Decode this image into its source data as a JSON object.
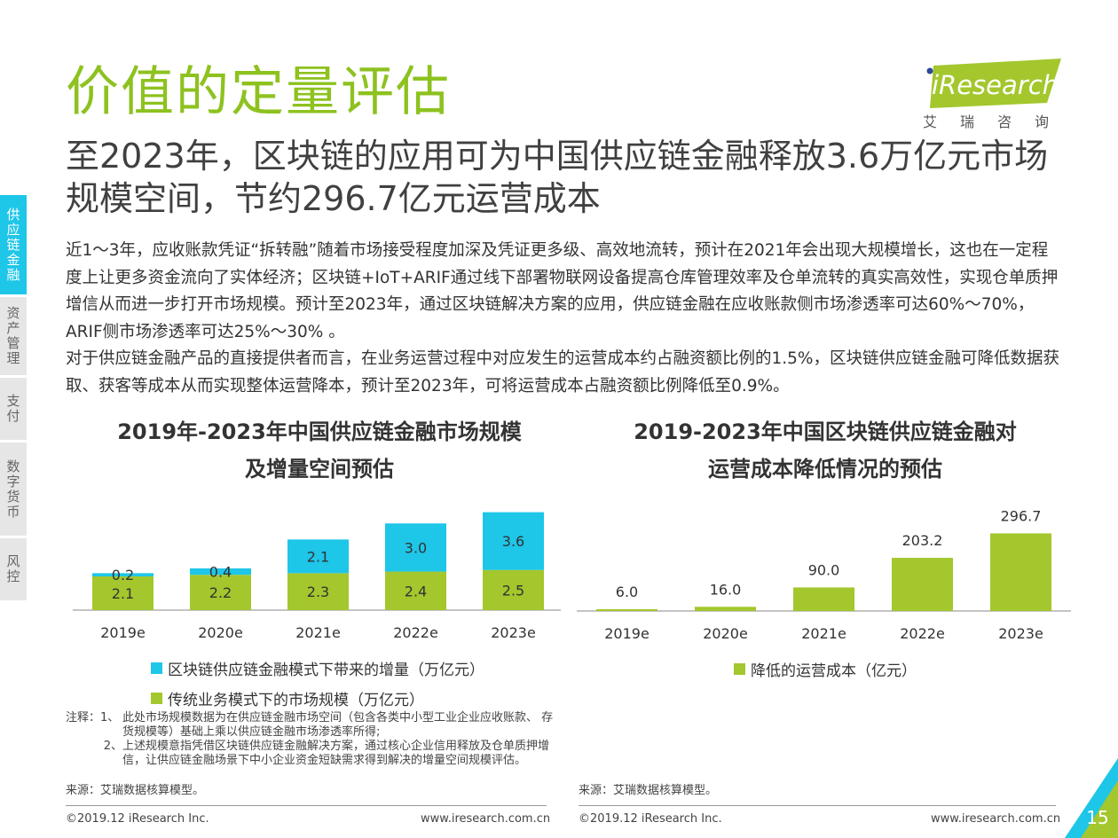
{
  "sidenav": [
    {
      "label": "供应链金融",
      "active": true
    },
    {
      "label": "资产管理",
      "active": false
    },
    {
      "label": "支付",
      "active": false
    },
    {
      "label": "数字货币",
      "active": false
    },
    {
      "label": "风控",
      "active": false
    }
  ],
  "header": {
    "title": "价值的定量评估",
    "logo_text": "iResearch",
    "logo_tagline": "艾瑞咨询",
    "headline": "至2023年，区块链的应用可为中国供应链金融释放3.6万亿元市场规模空间，节约296.7亿元运营成本"
  },
  "body": {
    "paragraph1": "近1～3年，应收账款凭证“拆转融”随着市场接受程度加深及凭证更多级、高效地流转，预计在2021年会出现大规模增长，这也在一定程度上让更多资金流向了实体经济；区块链+IoT+ARIF通过线下部署物联网设备提高仓库管理效率及仓单流转的真实高效性，实现仓单质押增信从而进一步打开市场规模。预计至2023年，通过区块链解决方案的应用，供应链金融在应收账款侧市场渗透率可达60%～70%， ARIF侧市场渗透率可达25%～30% 。",
    "paragraph2": "对于供应链金融产品的直接提供者而言，在业务运营过程中对应发生的运营成本约占融资额比例的1.5%，区块链供应链金融可降低数据获取、获客等成本从而实现整体运营降本，预计至2023年，可将运营成本占融资额比例降低至0.9%。"
  },
  "chart_data": [
    {
      "type": "bar",
      "stacked": true,
      "title": "2019年-2023年中国供应链金融市场规模及增量空间预估",
      "title_line1": "2019年-2023年中国供应链金融市场规模",
      "title_line2": "及增量空间预估",
      "categories": [
        "2019e",
        "2020e",
        "2021e",
        "2022e",
        "2023e"
      ],
      "series": [
        {
          "name": "传统业务模式下的市场规模（万亿元）",
          "color": "#a3c72d",
          "values": [
            2.1,
            2.2,
            2.3,
            2.4,
            2.5
          ]
        },
        {
          "name": "区块链供应链金融模式下带来的增量（万亿元）",
          "color": "#1ec6e8",
          "values": [
            0.2,
            0.4,
            2.1,
            3.0,
            3.6
          ]
        }
      ],
      "grid": false,
      "legend": "bottom"
    },
    {
      "type": "bar",
      "title": "2019-2023年中国区块链供应链金融对运营成本降低情况的预估",
      "title_line1": "2019-2023年中国区块链供应链金融对",
      "title_line2": "运营成本降低情况的预估",
      "categories": [
        "2019e",
        "2020e",
        "2021e",
        "2022e",
        "2023e"
      ],
      "series": [
        {
          "name": "降低的运营成本（亿元）",
          "color": "#a3c72d",
          "values": [
            6.0,
            16.0,
            90.0,
            203.2,
            296.7
          ]
        }
      ],
      "grid": false,
      "legend": "bottom"
    }
  ],
  "notes": {
    "lead": "注释：",
    "item1_num": "1、",
    "item1": "此处市场规模数据为在供应链金融市场空间（包含各类中小型工业企业应收账款、 存货规模等）基础上乘以供应链金融市场渗透率所得;",
    "item2_num": "2、",
    "item2": "上述规模意指凭借区块链供应链金融解决方案，通过核心企业信用释放及仓单质押增信，让供应链金融场景下中小企业资金短缺需求得到解决的增量空间规模评估。"
  },
  "footer": {
    "source1": "来源：艾瑞数据核算模型。",
    "source2": "来源：艾瑞数据核算模型。",
    "copyright": "©2019.12 iResearch Inc.",
    "website": "www.iresearch.com.cn",
    "page_number": "15"
  },
  "colors": {
    "accent_green": "#8dc21f",
    "accent_cyan": "#1ec6e8"
  }
}
